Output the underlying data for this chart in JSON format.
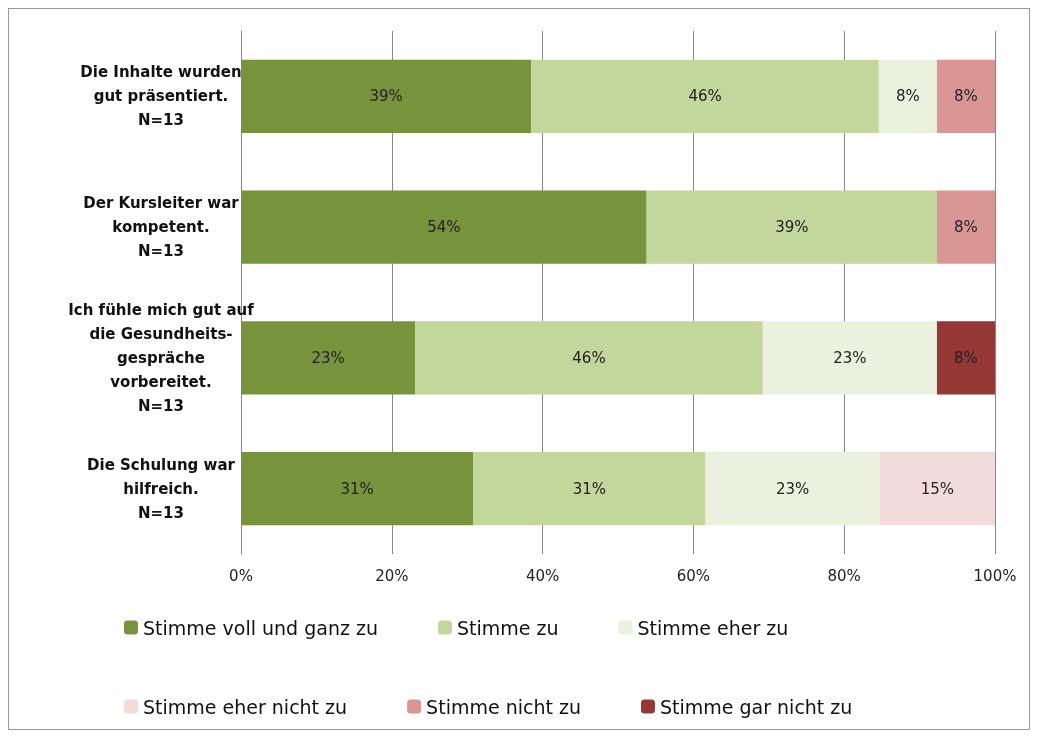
{
  "chart_data": {
    "type": "bar",
    "orientation": "horizontal",
    "stacked": true,
    "categories": [
      "Die Inhalte wurden\ngut präsentiert.\nN=13",
      "Der Kursleiter war\nkompetent.\nN=13",
      "Ich fühle mich gut auf\ndie Gesundheits-\ngespräche\nvorbereitet.\nN=13",
      "Die Schulung war\nhilfreich.\nN=13"
    ],
    "series": [
      {
        "name": "Stimme voll und ganz zu",
        "color": "#77933c",
        "values": [
          38.5,
          53.8,
          23.1,
          30.8
        ],
        "value_labels": [
          "39%",
          "54%",
          "23%",
          "31%"
        ]
      },
      {
        "name": "Stimme zu",
        "color": "#c3d69b",
        "values": [
          46.1,
          38.5,
          46.1,
          30.8
        ],
        "value_labels": [
          "46%",
          "39%",
          "46%",
          "31%"
        ]
      },
      {
        "name": "Stimme eher zu",
        "color": "#ebf1de",
        "values": [
          7.7,
          null,
          23.1,
          23.1
        ],
        "value_labels": [
          "8%",
          null,
          "23%",
          "23%"
        ]
      },
      {
        "name": "Stimme eher nicht zu",
        "color": "#f2dcdb",
        "values": [
          null,
          null,
          null,
          15.3
        ],
        "value_labels": [
          null,
          null,
          null,
          "15%"
        ]
      },
      {
        "name": "Stimme nicht zu",
        "color": "#d99694",
        "values": [
          7.7,
          7.7,
          null,
          null
        ],
        "value_labels": [
          "8%",
          "8%",
          null,
          null
        ]
      },
      {
        "name": "Stimme gar nicht zu",
        "color": "#953735",
        "values": [
          null,
          null,
          7.7,
          null
        ],
        "value_labels": [
          null,
          null,
          "8%",
          null
        ]
      }
    ],
    "xlim": [
      0,
      100
    ],
    "xticks": [
      {
        "value": 0,
        "label": "0%"
      },
      {
        "value": 20,
        "label": "20%"
      },
      {
        "value": 40,
        "label": "40%"
      },
      {
        "value": 60,
        "label": "60%"
      },
      {
        "value": 80,
        "label": "80%"
      },
      {
        "value": 100,
        "label": "100%"
      }
    ],
    "grid": "x",
    "legend": "bottom"
  }
}
